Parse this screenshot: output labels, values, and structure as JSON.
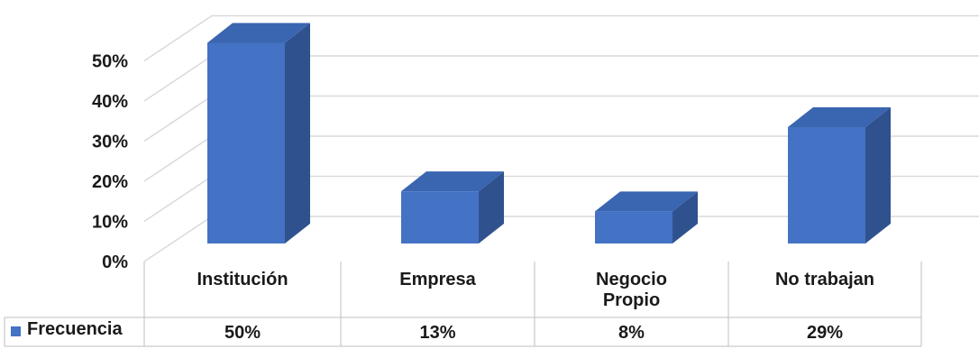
{
  "chart_data": {
    "type": "bar",
    "style": "3d-column-with-data-table",
    "categories": [
      "Institución",
      "Empresa",
      "Negocio\nPropio",
      "No trabajan"
    ],
    "series": [
      {
        "name": "Frecuencia",
        "values": [
          50,
          13,
          8,
          29
        ],
        "labels": [
          "50%",
          "13%",
          "8%",
          "29%"
        ],
        "color": "#4472c4"
      }
    ],
    "y_ticks": [
      "0%",
      "10%",
      "20%",
      "30%",
      "40%",
      "50%"
    ],
    "ylim": [
      0,
      50
    ],
    "grid": true,
    "legend": "data-table-left",
    "colors": {
      "front": "#4472c4",
      "side": "#2f528f",
      "top": "#3a65b0",
      "grid": "#d9d9d9",
      "table": "#bfbfbf"
    }
  }
}
